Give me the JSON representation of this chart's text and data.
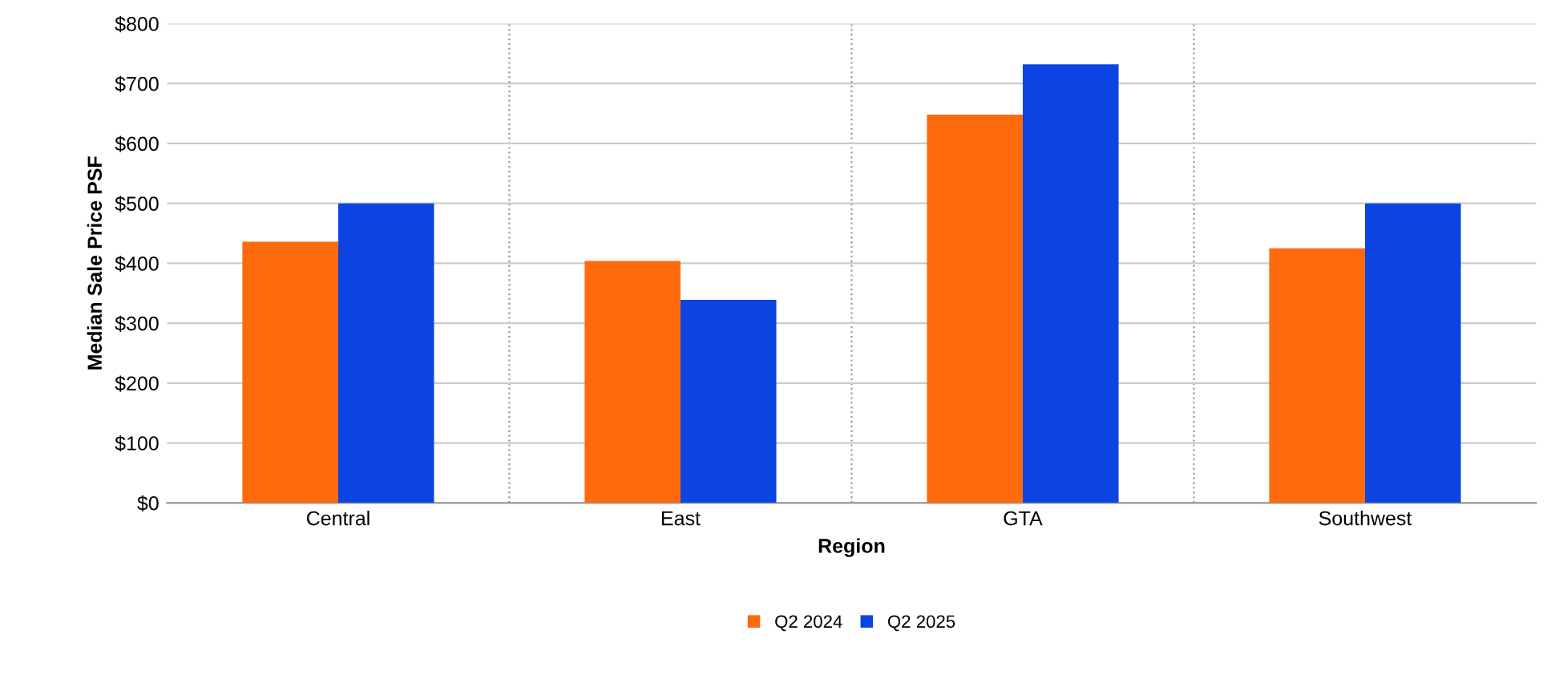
{
  "chart_data": {
    "type": "bar",
    "xlabel": "Region",
    "ylabel": "Median Sale Price PSF",
    "categories": [
      "Central",
      "East",
      "GTA",
      "Southwest"
    ],
    "series": [
      {
        "name": "Q2 2024",
        "color": "#ff6a0d",
        "values": [
          436,
          404,
          648,
          425
        ]
      },
      {
        "name": "Q2 2025",
        "color": "#0b44e0",
        "values": [
          500,
          339,
          732,
          500
        ]
      }
    ],
    "ylim": [
      0,
      800
    ],
    "yticks": [
      {
        "value": 0,
        "label": "$0"
      },
      {
        "value": 100,
        "label": "$100"
      },
      {
        "value": 200,
        "label": "$200"
      },
      {
        "value": 300,
        "label": "$300"
      },
      {
        "value": 400,
        "label": "$400"
      },
      {
        "value": 500,
        "label": "$500"
      },
      {
        "value": 600,
        "label": "$600"
      },
      {
        "value": 700,
        "label": "$700"
      },
      {
        "value": 800,
        "label": "$800"
      }
    ],
    "grid": true,
    "legend": "bottom"
  }
}
